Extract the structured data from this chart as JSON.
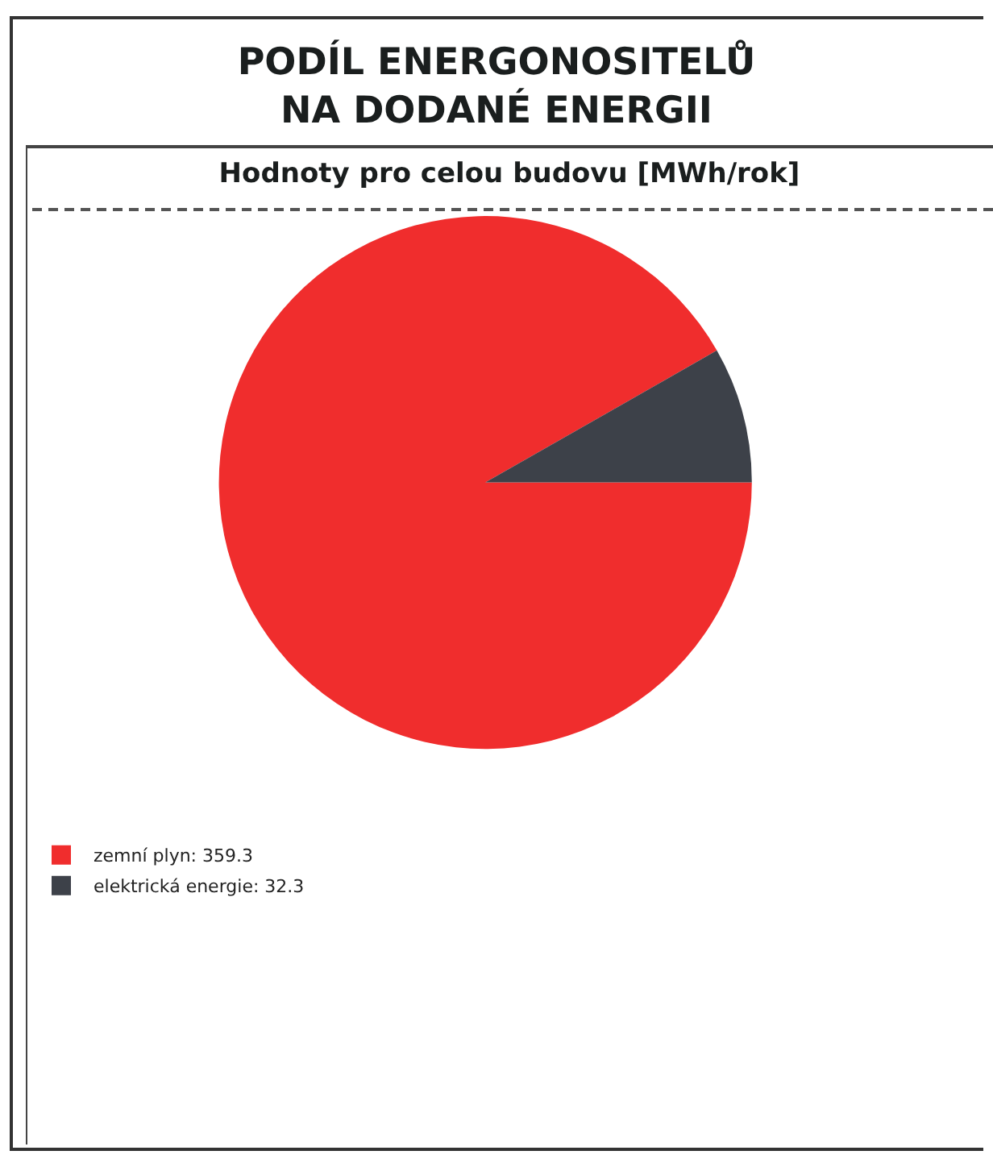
{
  "chart_data": {
    "type": "pie",
    "title": "PODÍL ENERGONOSITELŮ\nNA DODANÉ ENERGII",
    "subtitle": "Hodnoty pro celou budovu [MWh/rok]",
    "categories": [
      "zemní plyn: 359.3",
      "elektrická energie: 32.3"
    ],
    "values": [
      359.3,
      32.3
    ],
    "colors": [
      "#f02d2d",
      "#3d4149"
    ],
    "legend": "bottom left"
  }
}
